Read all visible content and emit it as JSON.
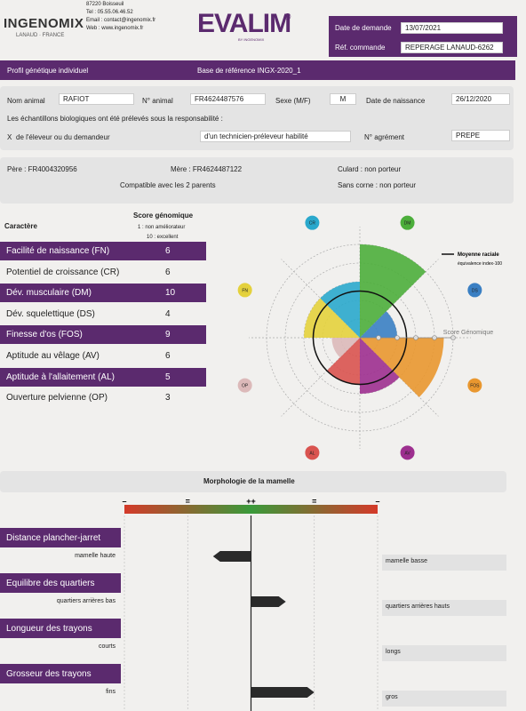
{
  "header": {
    "logo": "INGENOMIX",
    "logo_sub": "LANAUD · FRANCE",
    "address": [
      "87220 Boisseuil",
      "Tel : 05.55.06.46.52",
      "Email : contact@ingenomix.fr",
      "Web : www.ingenomix.fr"
    ],
    "brand": "EVALIM",
    "brand_mark": "®",
    "brand_sub": "BY INGENOMIX",
    "request_date_label": "Date de demande",
    "request_date": "13/07/2021",
    "order_label": "Réf. commande",
    "order": "REPERAGE LANAUD-6262"
  },
  "banner": {
    "left": "Profil génétique individuel",
    "right": "Base de référence INGX-2020_1"
  },
  "animal": {
    "name_label": "Nom animal",
    "name": "RAFIOT",
    "number_label": "N° animal",
    "number": "FR4624487576",
    "sex_label": "Sexe (M/F)",
    "sex": "M",
    "birth_label": "Date de naissance",
    "birth": "26/12/2020",
    "sampling_text": "Les échantillons biologiques ont été prélevés sous la responsabilité :",
    "check": "X",
    "option_breeder": "de l'éleveur ou du demandeur",
    "option_technician": "d'un technicien-préleveur habilité",
    "approval_label": "N° agrément",
    "approval": "PREPE"
  },
  "parents": {
    "father": "Père : FR4004320956",
    "mother": "Mère : FR4624487122",
    "culard": "Culard : non porteur",
    "compatible": "Compatible avec les 2 parents",
    "hornless": "Sans corne : non porteur"
  },
  "traits": {
    "header": "Caractère",
    "score_header": "Score génomique",
    "scale_low": "1 : non améliorateur",
    "scale_high": "10 : excellent",
    "rows": [
      {
        "name": "Facilité de naissance (FN)",
        "code": "FN",
        "score": 6,
        "color": "#e4d13c",
        "highlight": true
      },
      {
        "name": "Potentiel de croissance (CR)",
        "code": "CR",
        "score": 6,
        "color": "#2aa8cc",
        "highlight": false
      },
      {
        "name": "Dév. musculaire (DM)",
        "code": "DM",
        "score": 10,
        "color": "#4cae3b",
        "highlight": true
      },
      {
        "name": "Dév. squelettique (DS)",
        "code": "DS",
        "score": 4,
        "color": "#3a7fc3",
        "highlight": false
      },
      {
        "name": "Finesse d'os (FOS)",
        "code": "FOS",
        "score": 9,
        "color": "#e9972f",
        "highlight": true
      },
      {
        "name": "Aptitude au vêlage (AV)",
        "code": "AV",
        "score": 6,
        "color": "#9d2f8f",
        "highlight": false
      },
      {
        "name": "Aptitude à l'allaitement (AL)",
        "code": "AL",
        "score": 5,
        "color": "#d9534f",
        "highlight": true
      },
      {
        "name": "Ouverture pelvienne (OP)",
        "code": "OP",
        "score": 3,
        "color": "#dcb9b9",
        "highlight": false
      }
    ]
  },
  "radar": {
    "legend_title": "Moyenne raciale",
    "legend_sub": "équivalence index-100",
    "axis_label": "Score Génomique",
    "rlim": [
      0,
      10
    ],
    "rings": [
      2,
      4,
      6,
      8,
      10
    ],
    "mean": 5
  },
  "morphology": {
    "title": "Morphologie de la mamelle",
    "xlim": [
      -2,
      2
    ],
    "scale": [
      {
        "value": -2,
        "label": "–"
      },
      {
        "value": -1,
        "label": "="
      },
      {
        "value": 0,
        "label": "++"
      },
      {
        "value": 1,
        "label": "="
      },
      {
        "value": 2,
        "label": "–"
      }
    ],
    "rows": [
      {
        "name": "Distance plancher-jarret",
        "low": "mamelle haute",
        "high": "mamelle basse",
        "value": -0.6
      },
      {
        "name": "Equilibre des quartiers",
        "low": "quartiers arrières bas",
        "high": "quartiers arrières hauts",
        "value": 0.55
      },
      {
        "name": "Longueur des trayons",
        "low": "courts",
        "high": "longs",
        "value": 0
      },
      {
        "name": "Grosseur des trayons",
        "low": "fins",
        "high": "gros",
        "value": 1
      }
    ]
  }
}
